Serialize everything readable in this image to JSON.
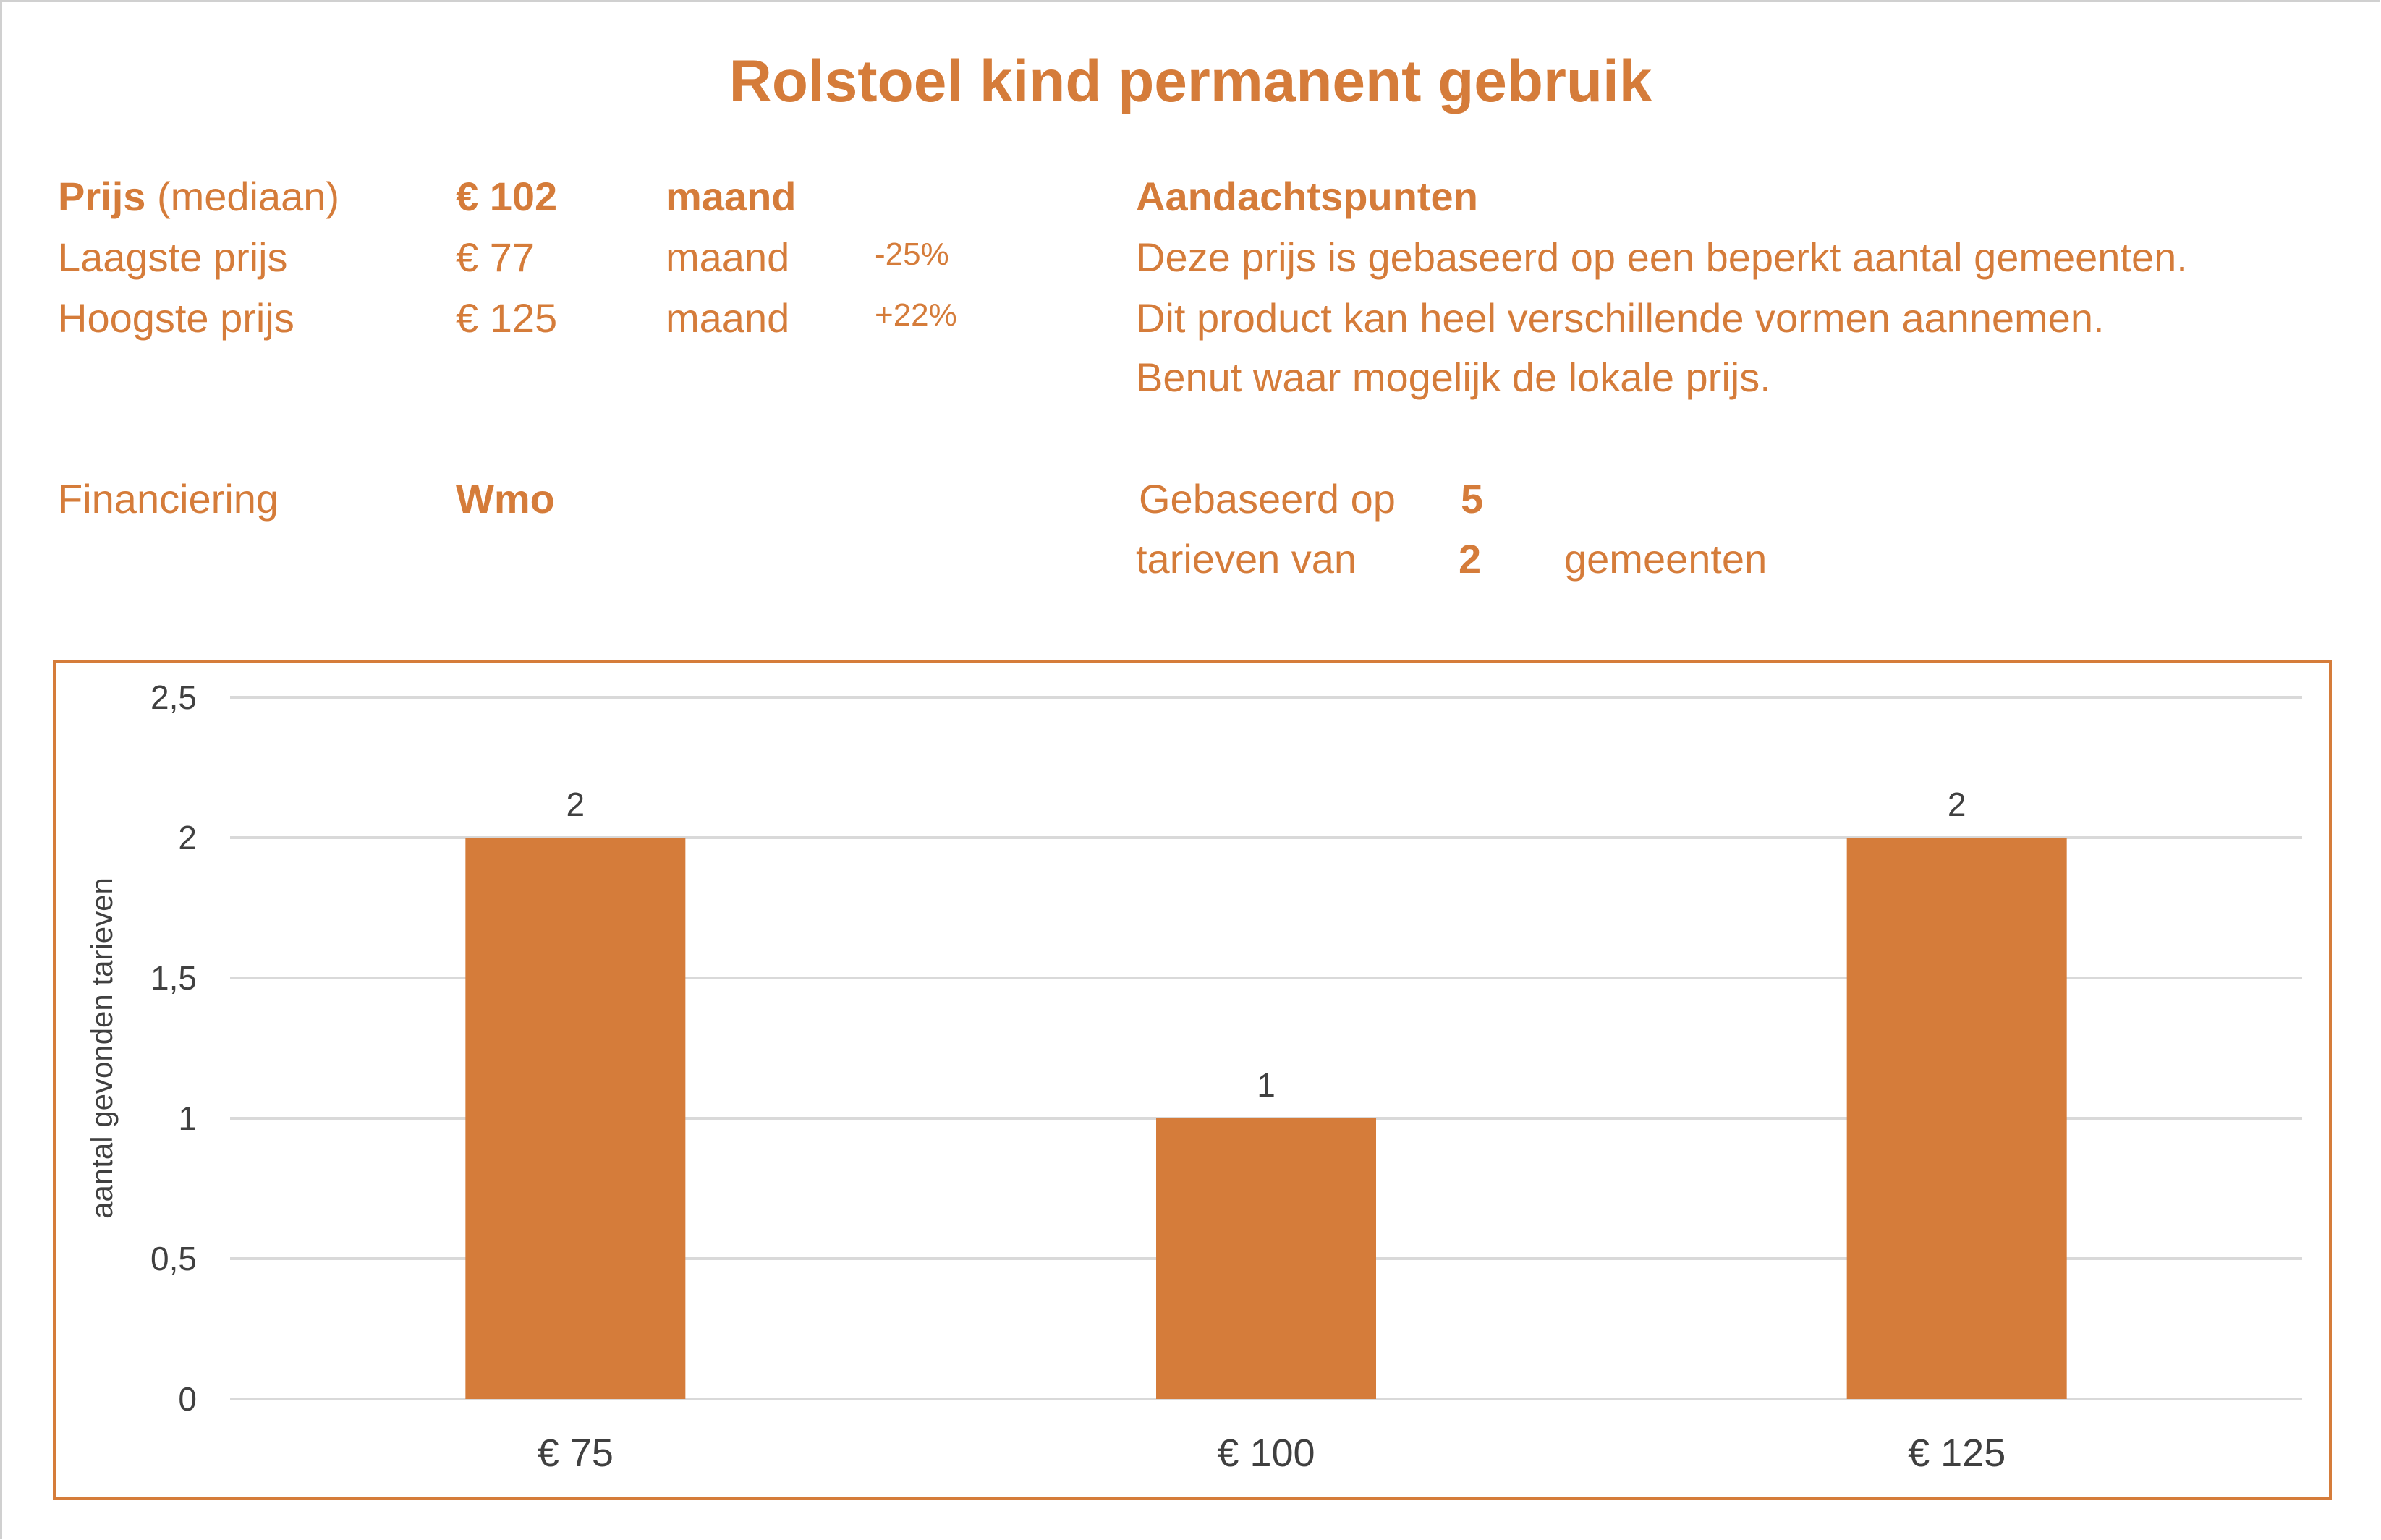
{
  "title": "Rolstoel kind permanent gebruik",
  "prices": {
    "median": {
      "label_bold": "Prijs",
      "label_rest": "(mediaan)",
      "value": "€ 102",
      "unit": "maand"
    },
    "lowest": {
      "label": "Laagste prijs",
      "value": "€ 77",
      "unit": "maand",
      "delta": "-25%"
    },
    "highest": {
      "label": "Hoogste prijs",
      "value": "€ 125",
      "unit": "maand",
      "delta": "+22%"
    }
  },
  "financing": {
    "label": "Financiering",
    "value": "Wmo"
  },
  "notes": {
    "heading": "Aandachtspunten",
    "lines": [
      "Deze prijs is gebaseerd op een beperkt aantal gemeenten.",
      "Dit product kan heel verschillende vormen aannemen.",
      "Benut waar mogelijk de lokale prijs."
    ]
  },
  "basis": {
    "label1": "Gebaseerd op",
    "count_rates": "5",
    "label2": "tarieven van",
    "count_municipalities": "2",
    "label3": "gemeenten"
  },
  "colors": {
    "accent": "#D57C3A",
    "axis_text": "#404040",
    "grid": "#d9d9d9"
  },
  "chart_data": {
    "type": "bar",
    "categories": [
      "€ 75",
      "€ 100",
      "€ 125"
    ],
    "values": [
      2,
      1,
      2
    ],
    "data_labels": [
      "2",
      "1",
      "2"
    ],
    "title": "",
    "xlabel": "",
    "ylabel": "aantal gevonden tarieven",
    "ylim": [
      0,
      2.5
    ],
    "yticks": [
      0,
      0.5,
      1,
      1.5,
      2,
      2.5
    ],
    "ytick_labels": [
      "0",
      "0,5",
      "1",
      "1,5",
      "2",
      "2,5"
    ],
    "grid": true,
    "legend": "none"
  }
}
